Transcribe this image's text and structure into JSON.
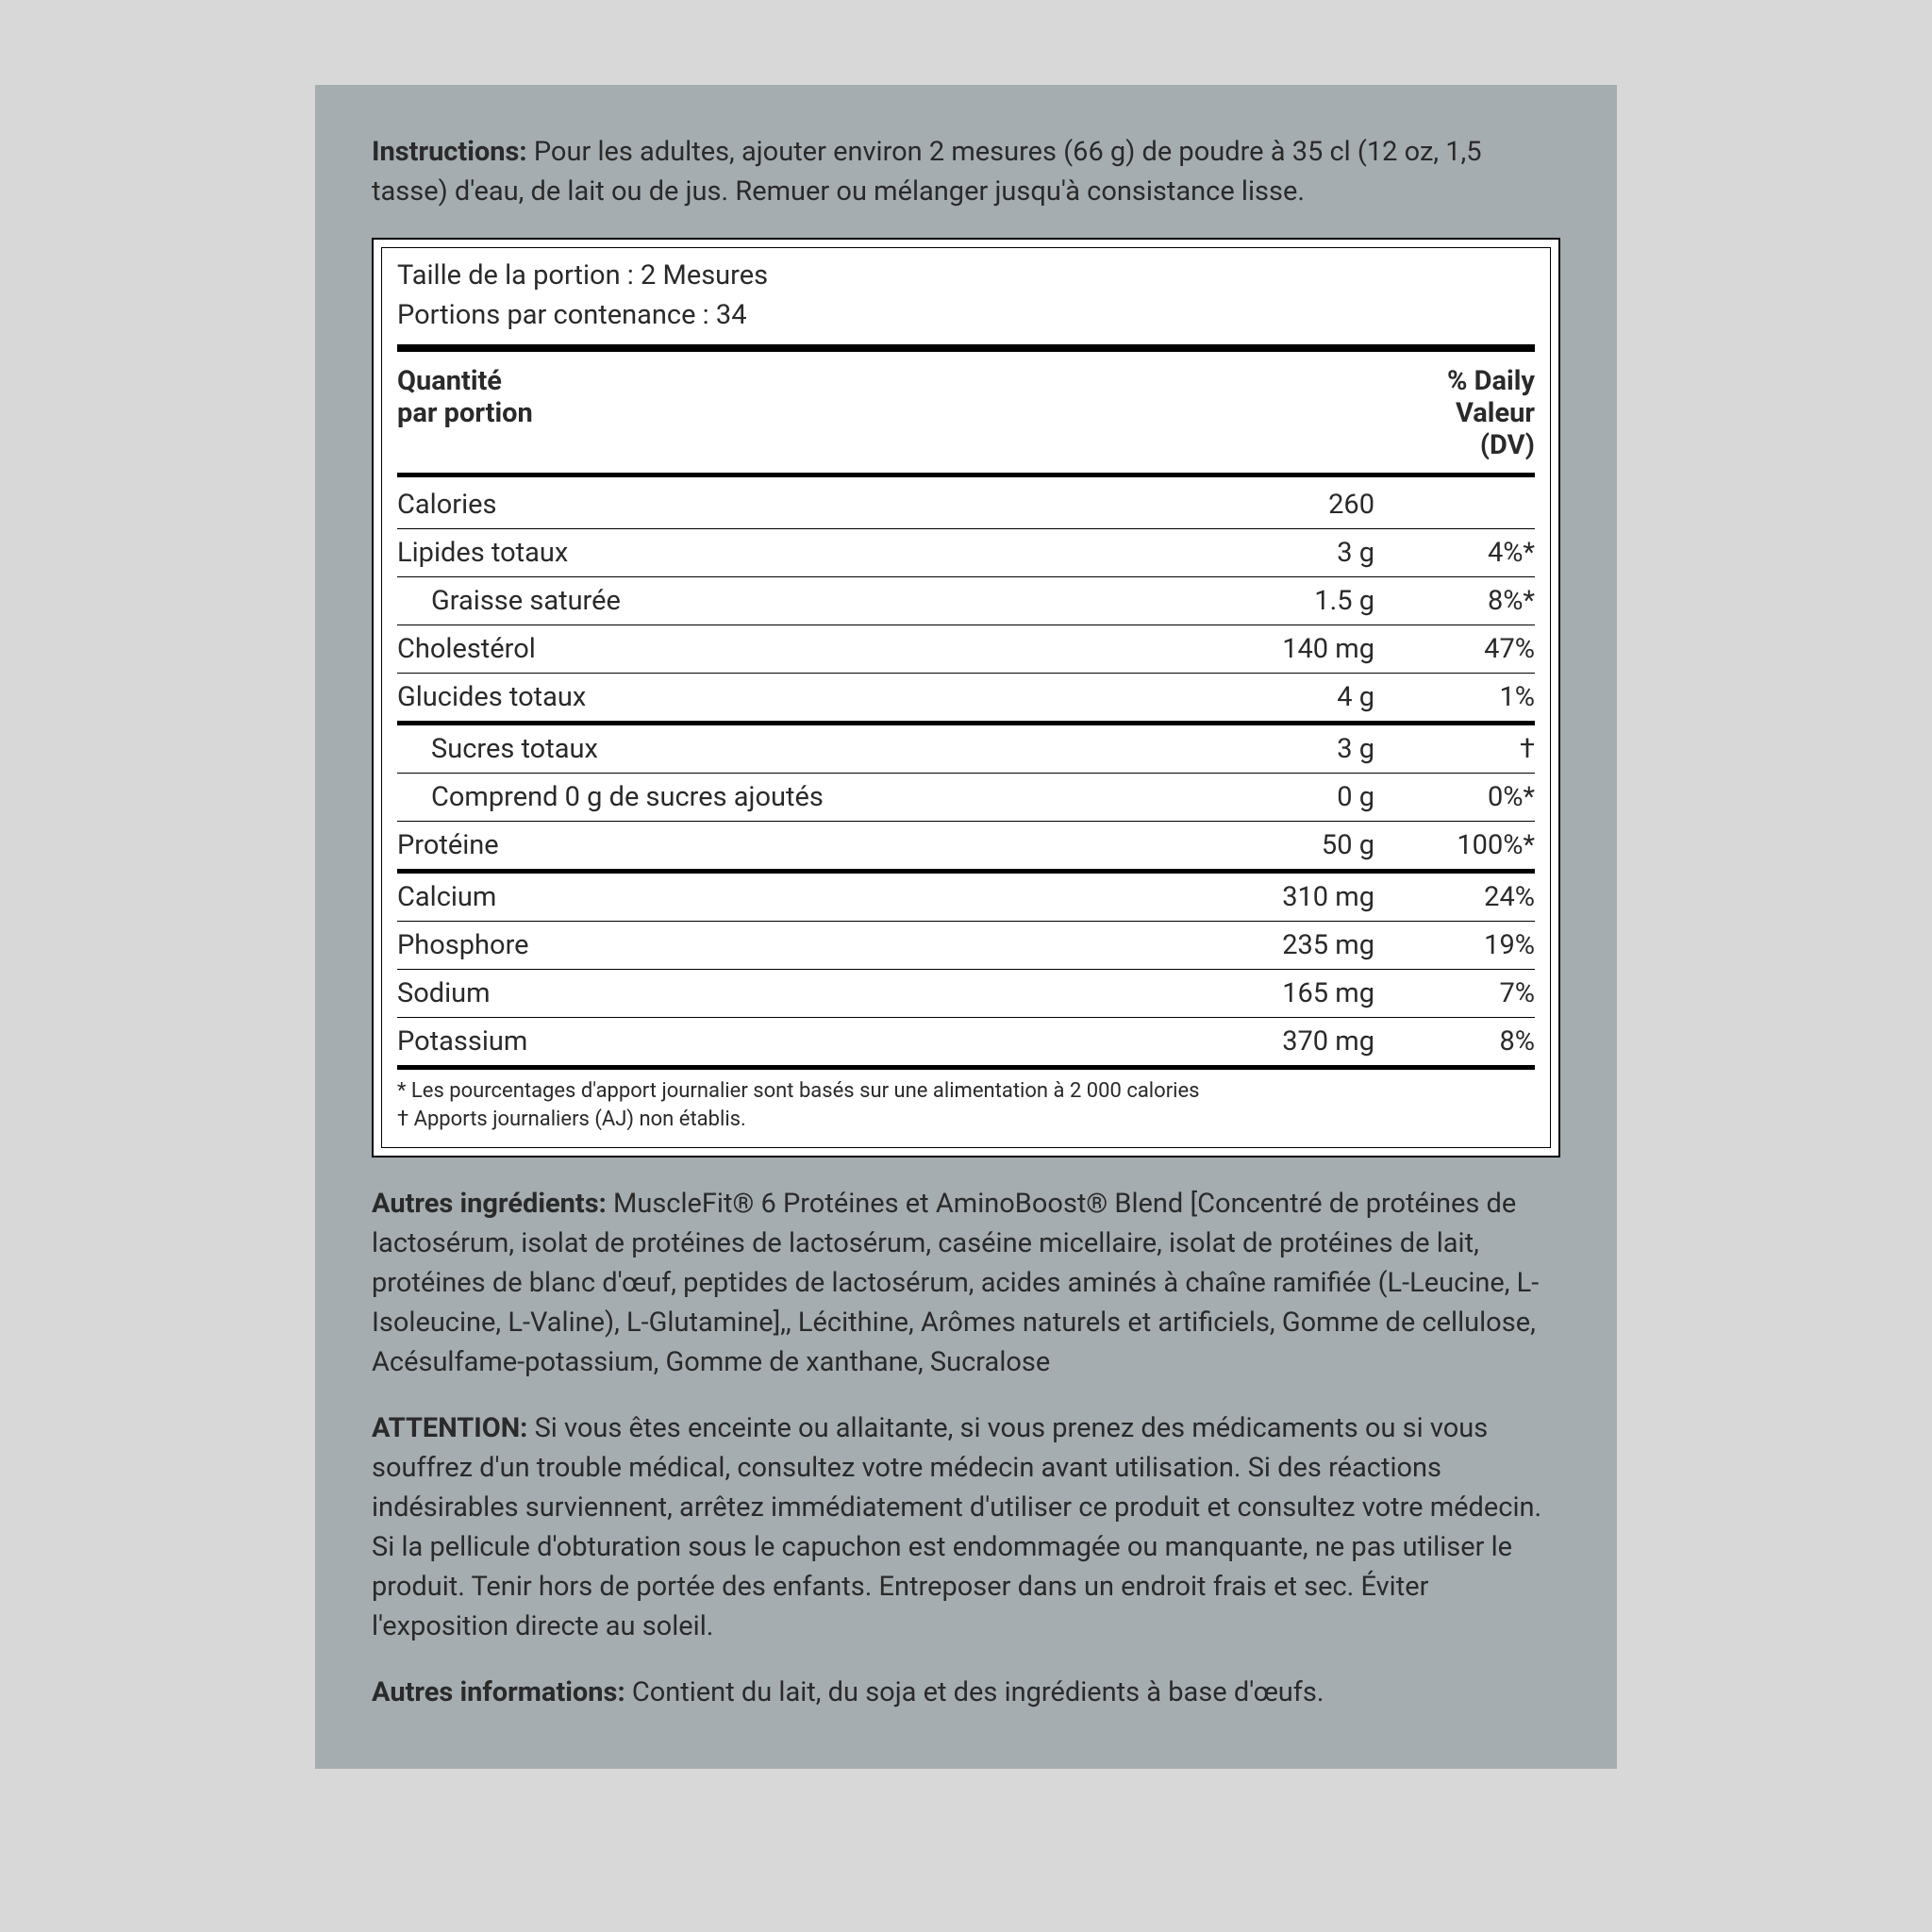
{
  "instructions": {
    "label": "Instructions:",
    "text": "Pour les adultes, ajouter environ 2 mesures (66 g) de poudre à 35 cl (12 oz, 1,5 tasse) d'eau, de lait ou de jus. Remuer ou mélanger jusqu'à consistance lisse."
  },
  "serving": {
    "size": "Taille de la portion : 2 Mesures",
    "per_container": "Portions par contenance : 34"
  },
  "header": {
    "amount_per_serving_1": "Quantité",
    "amount_per_serving_2": "par portion",
    "dv_1": "% Daily",
    "dv_2": "Valeur",
    "dv_3": "(DV)"
  },
  "rows": [
    {
      "label": "Calories",
      "amount": "260",
      "dv": "",
      "indent": 0,
      "rule": "thin"
    },
    {
      "label": "Lipides totaux",
      "amount": "3 g",
      "dv": "4%*",
      "indent": 0,
      "rule": "thin"
    },
    {
      "label": "Graisse saturée",
      "amount": "1.5 g",
      "dv": "8%*",
      "indent": 1,
      "rule": "thin"
    },
    {
      "label": "Cholestérol",
      "amount": "140 mg",
      "dv": "47%",
      "indent": 0,
      "rule": "thin"
    },
    {
      "label": "Glucides totaux",
      "amount": "4 g",
      "dv": "1%",
      "indent": 0,
      "rule": "med"
    },
    {
      "label": "Sucres totaux",
      "amount": "3 g",
      "dv": "†",
      "indent": 1,
      "rule": "thin"
    },
    {
      "label": "Comprend 0 g de sucres ajoutés",
      "amount": "0 g",
      "dv": "0%*",
      "indent": 1,
      "rule": "thin"
    },
    {
      "label": "Protéine",
      "amount": "50 g",
      "dv": "100%*",
      "indent": 0,
      "rule": "med"
    },
    {
      "label": "Calcium",
      "amount": "310 mg",
      "dv": "24%",
      "indent": 0,
      "rule": "thin"
    },
    {
      "label": "Phosphore",
      "amount": "235 mg",
      "dv": "19%",
      "indent": 0,
      "rule": "thin"
    },
    {
      "label": "Sodium",
      "amount": "165 mg",
      "dv": "7%",
      "indent": 0,
      "rule": "thin"
    },
    {
      "label": "Potassium",
      "amount": "370 mg",
      "dv": "8%",
      "indent": 0,
      "rule": "med"
    }
  ],
  "footnotes": {
    "line1": "* Les pourcentages d'apport journalier sont basés sur une alimentation à 2 000 calories",
    "line2": "† Apports journaliers (AJ) non établis."
  },
  "other_ingredients": {
    "label": "Autres ingrédients:",
    "text": "MuscleFit® 6 Protéines et AminoBoost® Blend [Concentré de protéines de lactosérum, isolat de protéines de lactosérum, caséine micellaire, isolat de protéines de lait, protéines de blanc d'œuf, peptides de lactosérum, acides aminés à chaîne ramifiée (L-Leucine, L-Isoleucine, L-Valine), L-Glutamine],, Lécithine, Arômes naturels et artificiels, Gomme de cellulose, Acésulfame-potassium, Gomme de xanthane, Sucralose"
  },
  "warning": {
    "label": "ATTENTION:",
    "text": "Si vous êtes enceinte ou allaitante, si vous prenez des médicaments ou si vous souffrez d'un trouble médical, consultez votre médecin avant utilisation. Si des réactions indésirables surviennent, arrêtez immédiatement d'utiliser ce produit et consultez votre médecin. Si la pellicule d'obturation sous le capuchon est endommagée ou manquante, ne pas utiliser le produit. Tenir hors de portée des enfants. Entreposer dans un endroit frais et sec. Éviter l'exposition directe au soleil."
  },
  "other_info": {
    "label": "Autres informations:",
    "text": "Contient du lait, du soja et des ingrédients à base d'œufs."
  }
}
